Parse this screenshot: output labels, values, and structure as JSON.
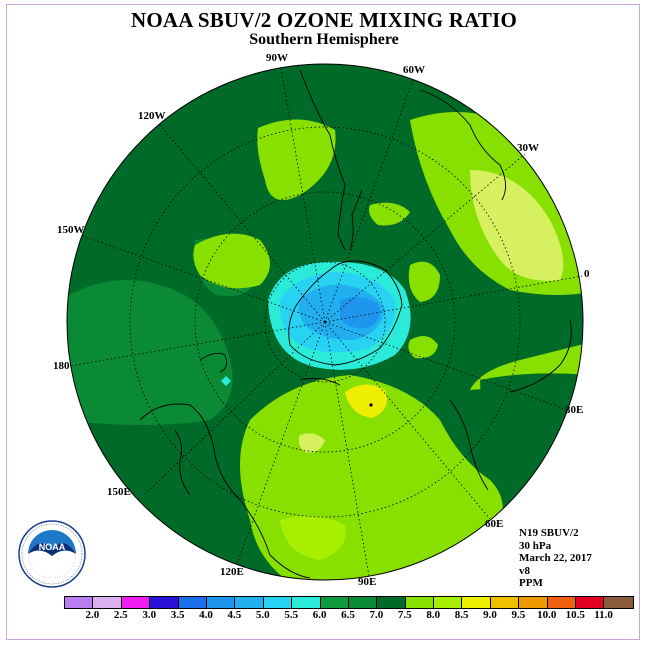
{
  "title": "NOAA SBUV/2 OZONE MIXING RATIO",
  "subtitle": "Southern Hemisphere",
  "longitude_labels": [
    {
      "text": "90W",
      "name": "label-90w"
    },
    {
      "text": "60W",
      "name": "label-60w"
    },
    {
      "text": "120W",
      "name": "label-120w"
    },
    {
      "text": "30W",
      "name": "label-30w"
    },
    {
      "text": "150W",
      "name": "label-150w"
    },
    {
      "text": "0",
      "name": "label-0"
    },
    {
      "text": "180",
      "name": "label-180"
    },
    {
      "text": "30E",
      "name": "label-30e"
    },
    {
      "text": "150E",
      "name": "label-150e"
    },
    {
      "text": "60E",
      "name": "label-60e"
    },
    {
      "text": "120E",
      "name": "label-120e"
    },
    {
      "text": "90E",
      "name": "label-90e"
    }
  ],
  "info": {
    "satellite": "N19 SBUV/2",
    "level": "30 hPa",
    "date": "March 22, 2017",
    "version": "v8",
    "units": "PPM"
  },
  "colorbar": {
    "ticks": [
      "2.0",
      "2.5",
      "3.0",
      "3.5",
      "4.0",
      "4.5",
      "5.0",
      "5.5",
      "6.0",
      "6.5",
      "7.0",
      "7.5",
      "8.0",
      "8.5",
      "9.0",
      "9.5",
      "10.0",
      "10.5",
      "11.0"
    ],
    "colors": [
      "#b87df0",
      "#dcb0ee",
      "#f01ef0",
      "#2a12d8",
      "#1a6ee8",
      "#1e96ee",
      "#20b0f0",
      "#28d2f2",
      "#2aead8",
      "#0c9a3c",
      "#0a8a34",
      "#006a28",
      "#88e000",
      "#a8ee00",
      "#eeee00",
      "#f0c000",
      "#f09800",
      "#f06010",
      "#e40020",
      "#8a5a3a"
    ]
  },
  "logo": {
    "text": "NOAA"
  }
}
